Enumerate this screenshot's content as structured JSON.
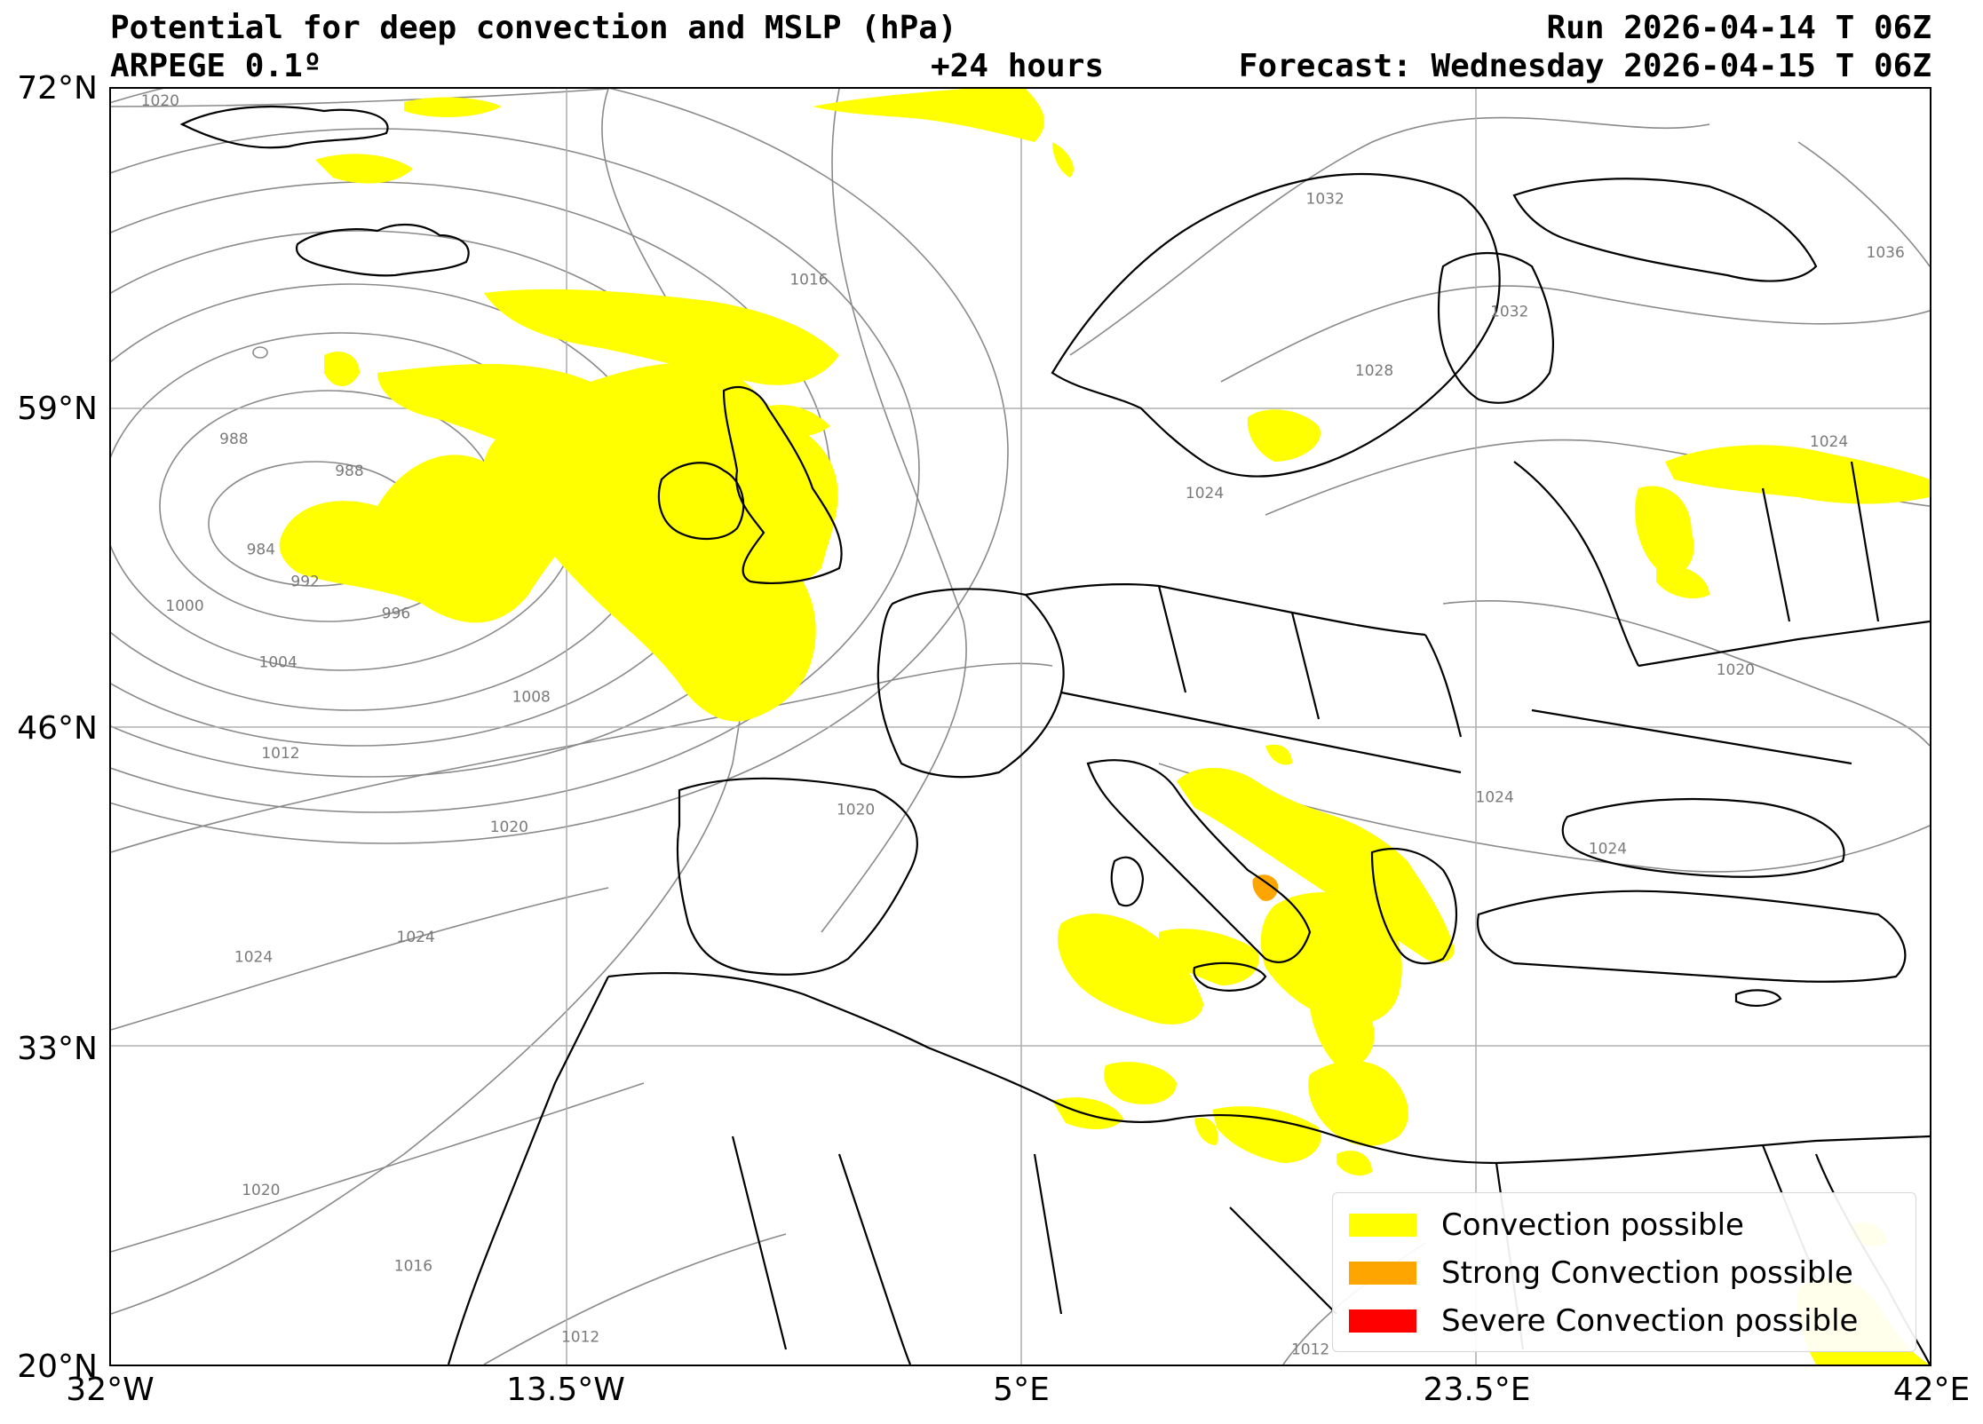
{
  "header": {
    "title": "Potential for deep convection and MSLP (hPa)",
    "model": "ARPEGE 0.1º",
    "lead_time": "+24 hours",
    "run": "Run 2026-04-14 T 06Z",
    "forecast": "Forecast: Wednesday 2026-04-15 T 06Z"
  },
  "map": {
    "lat_ticks": [
      {
        "value": 72,
        "label": "72°N"
      },
      {
        "value": 59,
        "label": "59°N"
      },
      {
        "value": 46,
        "label": "46°N"
      },
      {
        "value": 33,
        "label": "33°N"
      },
      {
        "value": 20,
        "label": "20°N"
      }
    ],
    "lon_ticks": [
      {
        "value": -32,
        "label": "32°W"
      },
      {
        "value": -13.5,
        "label": "13.5°W"
      },
      {
        "value": 5,
        "label": "5°E"
      },
      {
        "value": 23.5,
        "label": "23.5°E"
      },
      {
        "value": 42,
        "label": "42°E"
      }
    ],
    "extent": {
      "lon_min": -32,
      "lon_max": 42,
      "lat_min": 20,
      "lat_max": 72
    },
    "gridlines": true,
    "isobars": [
      {
        "label": "1020",
        "lon": -30,
        "lat": 71.5
      },
      {
        "label": "988",
        "lon": -27,
        "lat": 57.7
      },
      {
        "label": "988",
        "lon": -22.3,
        "lat": 56.4
      },
      {
        "label": "984",
        "lon": -25.9,
        "lat": 53.2
      },
      {
        "label": "992",
        "lon": -24.1,
        "lat": 51.9
      },
      {
        "label": "996",
        "lon": -20.4,
        "lat": 50.6
      },
      {
        "label": "1000",
        "lon": -29,
        "lat": 50.9
      },
      {
        "label": "1004",
        "lon": -25.2,
        "lat": 48.6
      },
      {
        "label": "1008",
        "lon": -14.9,
        "lat": 47.2
      },
      {
        "label": "1012",
        "lon": -25.1,
        "lat": 44.9
      },
      {
        "label": "1016",
        "lon": -3.6,
        "lat": 64.2
      },
      {
        "label": "1020",
        "lon": -15.8,
        "lat": 41.9
      },
      {
        "label": "1020",
        "lon": -1.7,
        "lat": 42.6
      },
      {
        "label": "1024",
        "lon": -19.6,
        "lat": 37.4
      },
      {
        "label": "1024",
        "lon": -26.2,
        "lat": 36.6
      },
      {
        "label": "1020",
        "lon": -25.9,
        "lat": 27.1
      },
      {
        "label": "1016",
        "lon": -19.7,
        "lat": 24.0
      },
      {
        "label": "1012",
        "lon": -12.9,
        "lat": 21.1
      },
      {
        "label": "1012",
        "lon": 16.8,
        "lat": 20.6
      },
      {
        "label": "1032",
        "lon": 17.4,
        "lat": 67.5
      },
      {
        "label": "1032",
        "lon": 24.9,
        "lat": 62.9
      },
      {
        "label": "1028",
        "lon": 19.4,
        "lat": 60.5
      },
      {
        "label": "1024",
        "lon": 12.5,
        "lat": 55.5
      },
      {
        "label": "1036",
        "lon": 40.2,
        "lat": 65.3
      },
      {
        "label": "1024",
        "lon": 37.9,
        "lat": 57.6
      },
      {
        "label": "1020",
        "lon": 34.1,
        "lat": 48.3
      },
      {
        "label": "1024",
        "lon": 24.3,
        "lat": 43.1
      },
      {
        "label": "1024",
        "lon": 28.9,
        "lat": 41.0
      }
    ]
  },
  "legend": {
    "items": [
      {
        "label": "Convection possible",
        "color": "#ffff00"
      },
      {
        "label": "Strong Convection possible",
        "color": "#ffa500"
      },
      {
        "label": "Severe Convection possible",
        "color": "#ff0000"
      }
    ]
  }
}
